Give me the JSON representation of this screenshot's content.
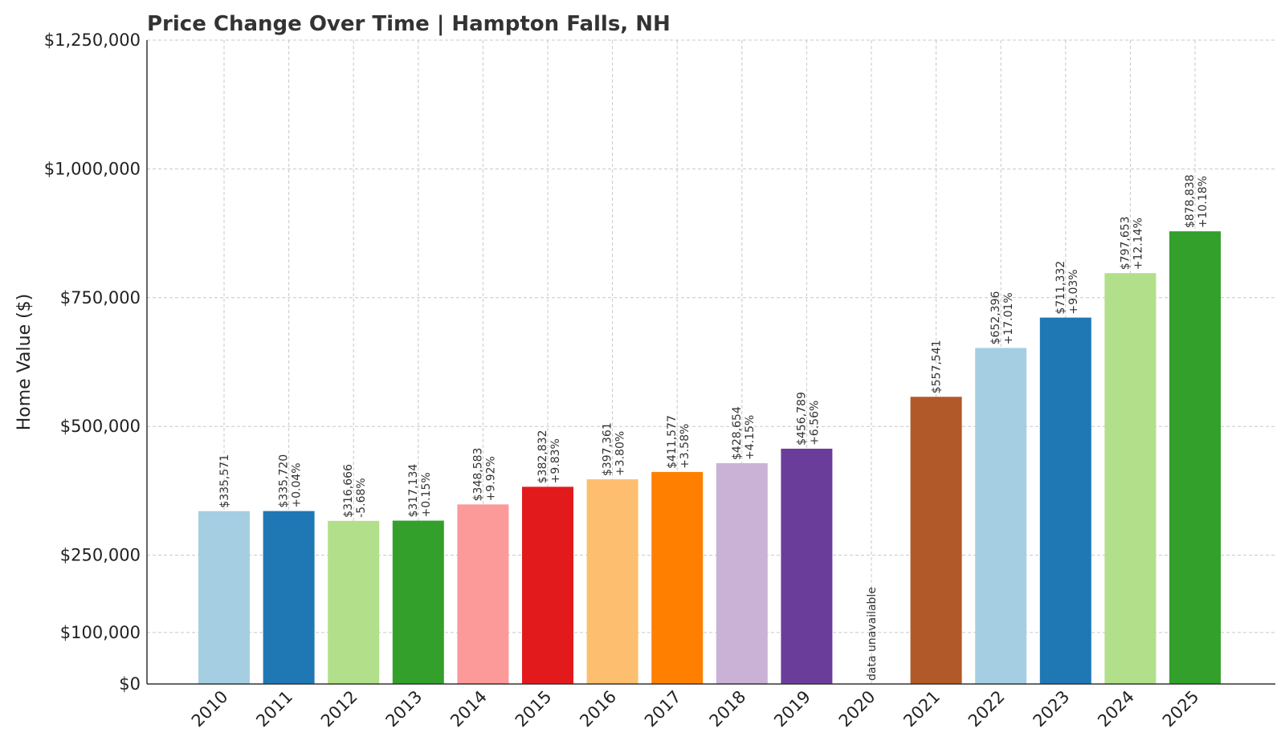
{
  "chart_data": {
    "type": "bar",
    "title": "Price Change Over Time | Hampton Falls, NH",
    "xlabel": "",
    "ylabel": "Home Value ($)",
    "ylim": [
      0,
      1250000
    ],
    "yticks": [
      0,
      100000,
      250000,
      500000,
      750000,
      1000000,
      1250000
    ],
    "ytick_labels": [
      "$0",
      "$100,000",
      "$250,000",
      "$500,000",
      "$750,000",
      "$1,000,000",
      "$1,250,000"
    ],
    "grid": true,
    "categories": [
      "2010",
      "2011",
      "2012",
      "2013",
      "2014",
      "2015",
      "2016",
      "2017",
      "2018",
      "2019",
      "2020",
      "2021",
      "2022",
      "2023",
      "2024",
      "2025"
    ],
    "values": [
      335571,
      335720,
      316666,
      317134,
      348583,
      382832,
      397361,
      411577,
      428654,
      456789,
      null,
      557541,
      652396,
      711332,
      797653,
      878838
    ],
    "value_labels": [
      "$335,571",
      "$335,720",
      "$316,666",
      "$317,134",
      "$348,583",
      "$382,832",
      "$397,361",
      "$411,577",
      "$428,654",
      "$456,789",
      "",
      "$557,541",
      "$652,396",
      "$711,332",
      "$797,653",
      "$878,838"
    ],
    "change_labels": [
      "",
      "+0.04%",
      "-5.68%",
      "+0.15%",
      "+9.92%",
      "+9.83%",
      "+3.80%",
      "+3.58%",
      "+4.15%",
      "+6.56%",
      "",
      "",
      "+17.01%",
      "+9.03%",
      "+12.14%",
      "+10.18%"
    ],
    "missing_label": "data unavailable",
    "colors": [
      "#a6cee3",
      "#1f78b4",
      "#b2df8a",
      "#33a02c",
      "#fb9a99",
      "#e31a1c",
      "#fdbf6f",
      "#ff7f00",
      "#cab2d6",
      "#6a3d9a",
      "#ffff99",
      "#b15928",
      "#a6cee3",
      "#1f78b4",
      "#b2df8a",
      "#33a02c"
    ]
  }
}
